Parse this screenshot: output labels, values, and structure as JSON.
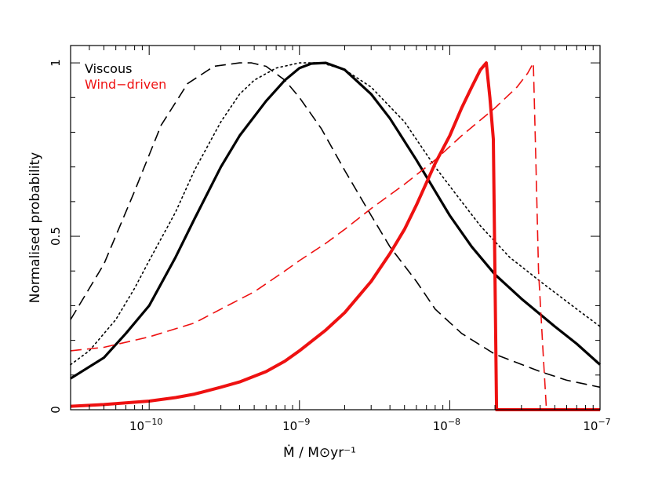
{
  "chart_data": {
    "type": "line",
    "xscale": "log",
    "xlim": [
      3e-11,
      1e-07
    ],
    "ylim": [
      0,
      1.05
    ],
    "xlabel": "Ṁ / M⊙yr⁻¹",
    "ylabel": "Normalised probability",
    "x_ticks": [
      {
        "value": 1e-10,
        "base": "10",
        "exp": "−10"
      },
      {
        "value": 1e-09,
        "base": "10",
        "exp": "−9"
      },
      {
        "value": 1e-08,
        "base": "10",
        "exp": "−8"
      },
      {
        "value": 1e-07,
        "base": "10",
        "exp": "−7"
      }
    ],
    "y_ticks": [
      {
        "value": 0,
        "label": "0"
      },
      {
        "value": 0.5,
        "label": "0.5"
      },
      {
        "value": 1,
        "label": "1"
      }
    ],
    "legend": {
      "placement": "top-left",
      "entries": [
        {
          "label": "Viscous",
          "color": "#000000"
        },
        {
          "label": "Wind−driven",
          "color": "#ee1111"
        }
      ]
    },
    "series": [
      {
        "group": "Viscous",
        "color": "#000000",
        "style": "dashed",
        "width": 1.6,
        "points": [
          [
            3e-11,
            0.26
          ],
          [
            5e-11,
            0.42
          ],
          [
            8e-11,
            0.63
          ],
          [
            1.2e-10,
            0.82
          ],
          [
            1.8e-10,
            0.94
          ],
          [
            2.7e-10,
            0.99
          ],
          [
            4e-10,
            1.0
          ],
          [
            4.8e-10,
            1.0
          ],
          [
            6e-10,
            0.99
          ],
          [
            8e-10,
            0.95
          ],
          [
            1e-09,
            0.9
          ],
          [
            1.4e-09,
            0.81
          ],
          [
            2e-09,
            0.69
          ],
          [
            3e-09,
            0.56
          ],
          [
            4e-09,
            0.47
          ],
          [
            6e-09,
            0.37
          ],
          [
            8e-09,
            0.29
          ],
          [
            1.2e-08,
            0.22
          ],
          [
            2e-08,
            0.16
          ],
          [
            4e-08,
            0.11
          ],
          [
            6e-08,
            0.085
          ],
          [
            1e-07,
            0.065
          ]
        ]
      },
      {
        "group": "Viscous",
        "color": "#000000",
        "style": "dotted",
        "width": 1.6,
        "points": [
          [
            3e-11,
            0.13
          ],
          [
            4e-11,
            0.17
          ],
          [
            6e-11,
            0.26
          ],
          [
            8e-11,
            0.35
          ],
          [
            1e-10,
            0.43
          ],
          [
            1.5e-10,
            0.57
          ],
          [
            2e-10,
            0.69
          ],
          [
            3e-10,
            0.83
          ],
          [
            4e-10,
            0.91
          ],
          [
            5e-10,
            0.95
          ],
          [
            7e-10,
            0.985
          ],
          [
            1e-09,
            1.0
          ],
          [
            1.4e-09,
            1.0
          ],
          [
            2e-09,
            0.98
          ],
          [
            3e-09,
            0.93
          ],
          [
            5e-09,
            0.83
          ],
          [
            8e-09,
            0.7
          ],
          [
            1.2e-08,
            0.6
          ],
          [
            1.6e-08,
            0.53
          ],
          [
            2.5e-08,
            0.44
          ],
          [
            4e-08,
            0.37
          ],
          [
            7e-08,
            0.29
          ],
          [
            1e-07,
            0.24
          ]
        ]
      },
      {
        "group": "Viscous",
        "color": "#000000",
        "style": "solid",
        "width": 3.2,
        "points": [
          [
            3e-11,
            0.09
          ],
          [
            5e-11,
            0.15
          ],
          [
            7e-11,
            0.22
          ],
          [
            1e-10,
            0.3
          ],
          [
            1.5e-10,
            0.44
          ],
          [
            2e-10,
            0.55
          ],
          [
            3e-10,
            0.7
          ],
          [
            4e-10,
            0.79
          ],
          [
            6e-10,
            0.89
          ],
          [
            8e-10,
            0.95
          ],
          [
            1e-09,
            0.985
          ],
          [
            1.2e-09,
            0.998
          ],
          [
            1.5e-09,
            1.0
          ],
          [
            2e-09,
            0.98
          ],
          [
            3e-09,
            0.91
          ],
          [
            4e-09,
            0.84
          ],
          [
            6e-09,
            0.72
          ],
          [
            8e-09,
            0.63
          ],
          [
            1e-08,
            0.56
          ],
          [
            1.4e-08,
            0.47
          ],
          [
            2e-08,
            0.39
          ],
          [
            3e-08,
            0.32
          ],
          [
            5e-08,
            0.24
          ],
          [
            7e-08,
            0.19
          ],
          [
            1e-07,
            0.13
          ]
        ]
      },
      {
        "group": "Wind−driven",
        "color": "#ee1111",
        "style": "dashed",
        "width": 1.6,
        "points": [
          [
            3e-11,
            0.17
          ],
          [
            5e-11,
            0.18
          ],
          [
            1e-10,
            0.21
          ],
          [
            2e-10,
            0.25
          ],
          [
            3e-10,
            0.29
          ],
          [
            5e-10,
            0.34
          ],
          [
            8e-10,
            0.4
          ],
          [
            1e-09,
            0.43
          ],
          [
            1.5e-09,
            0.48
          ],
          [
            2e-09,
            0.52
          ],
          [
            3e-09,
            0.58
          ],
          [
            5e-09,
            0.65
          ],
          [
            8e-09,
            0.72
          ],
          [
            1.2e-08,
            0.79
          ],
          [
            2e-08,
            0.87
          ],
          [
            2.8e-08,
            0.93
          ],
          [
            3.3e-08,
            0.97
          ],
          [
            3.6e-08,
            1.0
          ],
          [
            3.75e-08,
            0.7
          ],
          [
            3.9e-08,
            0.4
          ],
          [
            4.2e-08,
            0.15
          ],
          [
            4.4e-08,
            0.0
          ]
        ]
      },
      {
        "group": "Wind−driven",
        "color": "#ee1111",
        "style": "solid",
        "width": 4,
        "points": [
          [
            3e-11,
            0.01
          ],
          [
            5e-11,
            0.015
          ],
          [
            1e-10,
            0.025
          ],
          [
            1.5e-10,
            0.035
          ],
          [
            2e-10,
            0.045
          ],
          [
            3e-10,
            0.065
          ],
          [
            4e-10,
            0.08
          ],
          [
            6e-10,
            0.11
          ],
          [
            8e-10,
            0.14
          ],
          [
            1e-09,
            0.17
          ],
          [
            1.5e-09,
            0.23
          ],
          [
            2e-09,
            0.28
          ],
          [
            3e-09,
            0.37
          ],
          [
            4e-09,
            0.45
          ],
          [
            5e-09,
            0.52
          ],
          [
            6e-09,
            0.59
          ],
          [
            8e-09,
            0.71
          ],
          [
            1e-08,
            0.79
          ],
          [
            1.2e-08,
            0.87
          ],
          [
            1.4e-08,
            0.93
          ],
          [
            1.6e-08,
            0.98
          ],
          [
            1.75e-08,
            1.0
          ],
          [
            1.85e-08,
            0.9
          ],
          [
            1.95e-08,
            0.78
          ],
          [
            2.05e-08,
            0.0
          ],
          [
            1e-07,
            0.0
          ]
        ]
      }
    ]
  }
}
